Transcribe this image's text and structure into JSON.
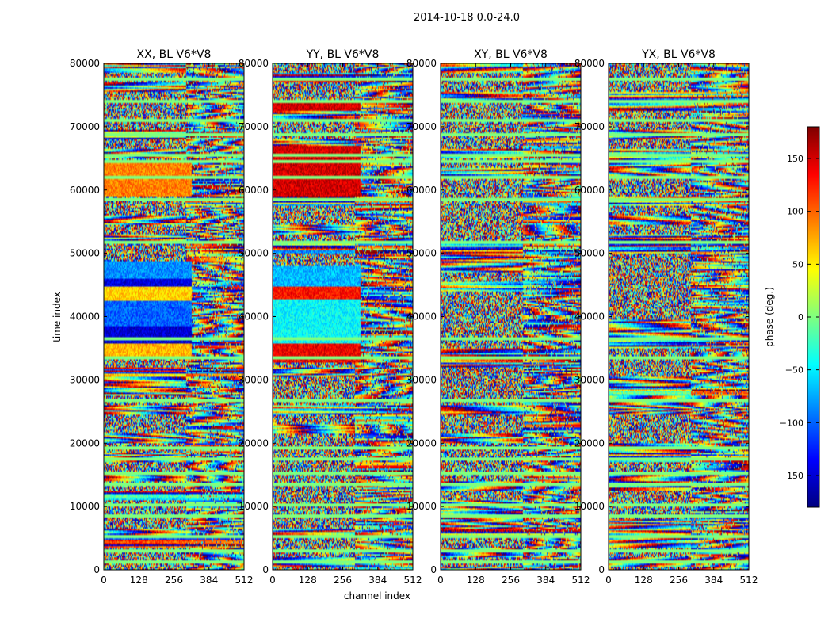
{
  "figure": {
    "suptitle": "2014-10-18 0.0-24.0"
  },
  "chart_data": {
    "type": "heatmap",
    "title": "2014-10-18 0.0-24.0",
    "xlabel": "channel index",
    "ylabel": "time index",
    "xlim": [
      0,
      512
    ],
    "ylim": [
      0,
      80000
    ],
    "xticks": [
      0,
      128,
      256,
      384,
      512
    ],
    "yticks": [
      0,
      10000,
      20000,
      30000,
      40000,
      50000,
      60000,
      70000,
      80000
    ],
    "panels": [
      {
        "title": "XX, BL V6*V8",
        "key": "xx"
      },
      {
        "title": "YY, BL V6*V8",
        "key": "yy"
      },
      {
        "title": "XY, BL V6*V8",
        "key": "xy"
      },
      {
        "title": "YX, BL V6*V8",
        "key": "yx"
      }
    ],
    "colorbar": {
      "label": "phase (deg.)",
      "range": [
        -180,
        180
      ],
      "ticks": [
        -150,
        -100,
        -50,
        0,
        50,
        100,
        150
      ],
      "tick_labels": [
        "−150",
        "−100",
        "−50",
        "0",
        "50",
        "100",
        "150"
      ],
      "colormap": [
        "#00007f",
        "#0000ff",
        "#007fff",
        "#00ffff",
        "#7fff7f",
        "#ffff00",
        "#ff7f00",
        "#ff0000",
        "#7f0000"
      ]
    },
    "coherent_blocks": [
      {
        "panel": "xx",
        "t0": 33800,
        "t1": 35800,
        "c0": 0,
        "c1": 320,
        "phase": 70
      },
      {
        "panel": "xx",
        "t0": 35800,
        "t1": 38500,
        "c0": 0,
        "c1": 320,
        "phase": -150
      },
      {
        "panel": "xx",
        "t0": 38500,
        "t1": 42500,
        "c0": 0,
        "c1": 320,
        "phase": -100
      },
      {
        "panel": "xx",
        "t0": 42500,
        "t1": 44800,
        "c0": 0,
        "c1": 320,
        "phase": 60
      },
      {
        "panel": "xx",
        "t0": 44800,
        "t1": 46000,
        "c0": 0,
        "c1": 320,
        "phase": -145
      },
      {
        "panel": "xx",
        "t0": 46000,
        "t1": 48800,
        "c0": 0,
        "c1": 320,
        "phase": -85
      },
      {
        "panel": "xx",
        "t0": 59000,
        "t1": 64500,
        "c0": 0,
        "c1": 320,
        "phase": 90
      },
      {
        "panel": "yy",
        "t0": 32800,
        "t1": 35800,
        "c0": 0,
        "c1": 320,
        "phase": 140
      },
      {
        "panel": "yy",
        "t0": 35800,
        "t1": 42800,
        "c0": 0,
        "c1": 320,
        "phase": -45
      },
      {
        "panel": "yy",
        "t0": 42800,
        "t1": 44800,
        "c0": 0,
        "c1": 320,
        "phase": 130
      },
      {
        "panel": "yy",
        "t0": 44800,
        "t1": 48000,
        "c0": 0,
        "c1": 320,
        "phase": -70
      },
      {
        "panel": "yy",
        "t0": 59000,
        "t1": 67000,
        "c0": 0,
        "c1": 320,
        "phase": 150
      },
      {
        "panel": "yy",
        "t0": 72500,
        "t1": 74000,
        "c0": 0,
        "c1": 320,
        "phase": 150
      }
    ],
    "flagged_rows": [
      1200,
      2900,
      5200,
      8600,
      10300,
      13500,
      15300,
      17600,
      19300,
      26800,
      33500,
      36600,
      52000,
      58700,
      62100,
      64600,
      65800,
      69000,
      71200,
      74300,
      77800
    ]
  }
}
